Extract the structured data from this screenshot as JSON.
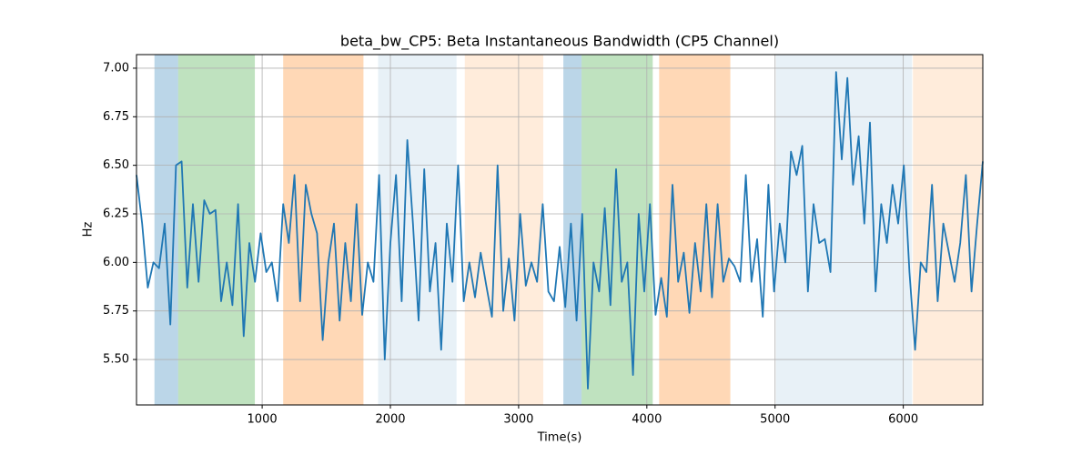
{
  "chart_data": {
    "type": "line",
    "title": "beta_bw_CP5: Beta Instantaneous Bandwidth (CP5 Channel)",
    "x_label": "Time(s)",
    "y_label": "Hz",
    "xlim": [
      20,
      6620
    ],
    "ylim": [
      5.266,
      7.07
    ],
    "xticks": [
      1000,
      2000,
      3000,
      4000,
      5000,
      6000
    ],
    "yticks": [
      {
        "value": 5.5,
        "label": "5.50"
      },
      {
        "value": 5.75,
        "label": "5.75"
      },
      {
        "value": 6.0,
        "label": "6.00"
      },
      {
        "value": 6.25,
        "label": "6.25"
      },
      {
        "value": 6.5,
        "label": "6.50"
      },
      {
        "value": 6.75,
        "label": "6.75"
      },
      {
        "value": 7.0,
        "label": "7.00"
      }
    ],
    "grid": true,
    "spans": [
      {
        "start": 160,
        "end": 345,
        "color": "#1f77b4",
        "alpha": 0.3
      },
      {
        "start": 345,
        "end": 943,
        "color": "#2ca02c",
        "alpha": 0.3
      },
      {
        "start": 1164,
        "end": 1790,
        "color": "#ff7f0e",
        "alpha": 0.3
      },
      {
        "start": 1904,
        "end": 2516,
        "color": "#1f77b4",
        "alpha": 0.1
      },
      {
        "start": 2580,
        "end": 3192,
        "color": "#ff7f0e",
        "alpha": 0.15
      },
      {
        "start": 3349,
        "end": 3491,
        "color": "#1f77b4",
        "alpha": 0.3
      },
      {
        "start": 3491,
        "end": 4046,
        "color": "#2ca02c",
        "alpha": 0.3
      },
      {
        "start": 4096,
        "end": 4651,
        "color": "#ff7f0e",
        "alpha": 0.3
      },
      {
        "start": 5007,
        "end": 6068,
        "color": "#1f77b4",
        "alpha": 0.1
      },
      {
        "start": 6075,
        "end": 6620,
        "color": "#ff7f0e",
        "alpha": 0.15
      }
    ],
    "x": [
      20,
      64,
      108,
      152,
      196,
      240,
      284,
      328,
      372,
      416,
      460,
      504,
      548,
      592,
      636,
      680,
      724,
      768,
      812,
      856,
      900,
      944,
      988,
      1032,
      1076,
      1120,
      1164,
      1208,
      1252,
      1296,
      1340,
      1384,
      1428,
      1472,
      1516,
      1560,
      1604,
      1648,
      1692,
      1736,
      1780,
      1824,
      1868,
      1912,
      1956,
      2000,
      2044,
      2088,
      2132,
      2176,
      2220,
      2264,
      2308,
      2352,
      2396,
      2440,
      2484,
      2528,
      2572,
      2616,
      2660,
      2704,
      2748,
      2792,
      2836,
      2880,
      2924,
      2968,
      3012,
      3056,
      3100,
      3144,
      3188,
      3232,
      3276,
      3320,
      3364,
      3408,
      3452,
      3496,
      3540,
      3584,
      3628,
      3672,
      3716,
      3760,
      3804,
      3848,
      3892,
      3936,
      3980,
      4024,
      4068,
      4112,
      4156,
      4200,
      4244,
      4288,
      4332,
      4376,
      4420,
      4464,
      4508,
      4552,
      4596,
      4640,
      4684,
      4728,
      4772,
      4816,
      4860,
      4904,
      4948,
      4992,
      5036,
      5080,
      5124,
      5168,
      5212,
      5256,
      5300,
      5344,
      5388,
      5432,
      5476,
      5520,
      5564,
      5608,
      5652,
      5696,
      5740,
      5784,
      5828,
      5872,
      5916,
      5960,
      6004,
      6048,
      6092,
      6136,
      6180,
      6224,
      6268,
      6312,
      6356,
      6400,
      6444,
      6488,
      6532,
      6576,
      6620
    ],
    "series": [
      {
        "color": "#1f77b4",
        "values": [
          6.45,
          6.2,
          5.87,
          6.0,
          5.97,
          6.2,
          5.68,
          6.5,
          6.52,
          5.87,
          6.3,
          5.9,
          6.32,
          6.25,
          6.27,
          5.8,
          6.0,
          5.78,
          6.3,
          5.62,
          6.1,
          5.9,
          6.15,
          5.95,
          6.0,
          5.8,
          6.3,
          6.1,
          6.45,
          5.8,
          6.4,
          6.25,
          6.15,
          5.6,
          6.0,
          6.2,
          5.7,
          6.1,
          5.8,
          6.3,
          5.73,
          6.0,
          5.9,
          6.45,
          5.5,
          6.1,
          6.45,
          5.8,
          6.63,
          6.2,
          5.7,
          6.48,
          5.85,
          6.1,
          5.55,
          6.2,
          5.9,
          6.5,
          5.8,
          6.0,
          5.82,
          6.05,
          5.88,
          5.72,
          6.5,
          5.75,
          6.02,
          5.7,
          6.25,
          5.88,
          6.0,
          5.9,
          6.3,
          5.85,
          5.8,
          6.08,
          5.77,
          6.2,
          5.7,
          6.25,
          5.35,
          6.0,
          5.85,
          6.28,
          5.78,
          6.48,
          5.9,
          6.0,
          5.42,
          6.25,
          5.85,
          6.3,
          5.73,
          5.92,
          5.72,
          6.4,
          5.9,
          6.05,
          5.74,
          6.1,
          5.85,
          6.3,
          5.82,
          6.3,
          5.9,
          6.02,
          5.98,
          5.9,
          6.45,
          5.9,
          6.12,
          5.72,
          6.4,
          5.85,
          6.2,
          6.0,
          6.57,
          6.45,
          6.6,
          5.85,
          6.3,
          6.1,
          6.12,
          5.95,
          6.98,
          6.53,
          6.95,
          6.4,
          6.65,
          6.2,
          6.72,
          5.85,
          6.3,
          6.1,
          6.4,
          6.2,
          6.5,
          5.95,
          5.55,
          6.0,
          5.95,
          6.4,
          5.8,
          6.2,
          6.05,
          5.9,
          6.1,
          6.45,
          5.85,
          6.2,
          6.52
        ]
      }
    ]
  }
}
